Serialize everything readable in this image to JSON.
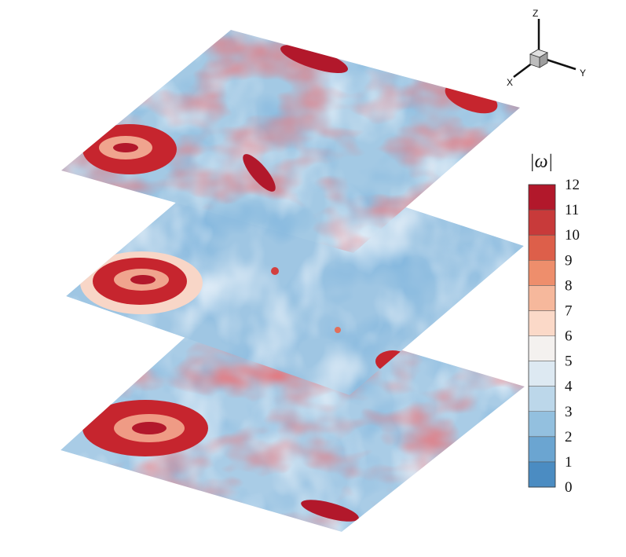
{
  "figure": {
    "title": "",
    "slices": [
      {
        "name": "top-slice"
      },
      {
        "name": "middle-slice"
      },
      {
        "name": "bottom-slice"
      }
    ]
  },
  "axes_triad": {
    "z_label": "Z",
    "x_label": "X",
    "y_label": "Y"
  },
  "colorbar": {
    "title": "|ω|",
    "ticks": [
      "12",
      "11",
      "10",
      "9",
      "8",
      "7",
      "6",
      "5",
      "4",
      "3",
      "2",
      "1",
      "0"
    ],
    "colors": [
      "#b2182b",
      "#c83a3a",
      "#dd5f4a",
      "#ee8e6c",
      "#f6b89c",
      "#fbd9c8",
      "#f4f1ef",
      "#dde9f2",
      "#bcd7ea",
      "#93c0df",
      "#6ba5d1",
      "#4b8cc2",
      "#3473b1"
    ]
  }
}
